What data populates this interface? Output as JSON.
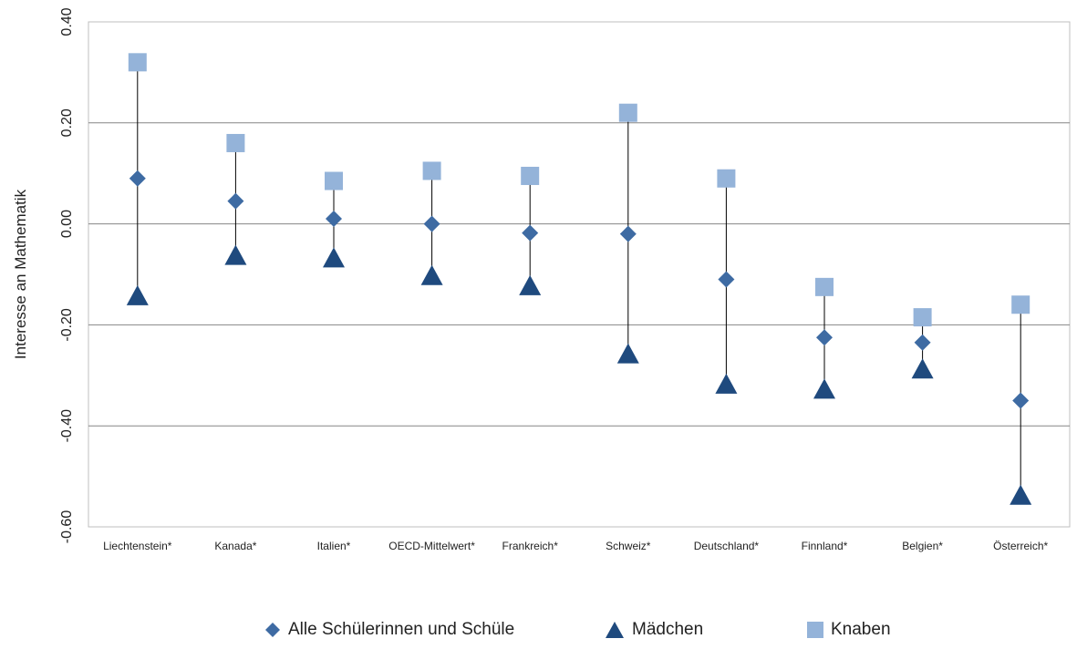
{
  "colors": {
    "alle": "#3e6ba3",
    "maedchen": "#1f4a7e",
    "knaben": "#94b3d9",
    "grid": "#868686",
    "frame": "#bfbfbf",
    "stem": "#000000"
  },
  "chart_data": {
    "type": "scatter",
    "title": "",
    "xlabel": "",
    "ylabel": "Interesse an Mathematik",
    "ylim": [
      -0.6,
      0.4
    ],
    "yticks": [
      "-0.60",
      "-0.40",
      "-0.20",
      "0.00",
      "0.20",
      "0.40"
    ],
    "grid": true,
    "legend_position": "bottom",
    "categories": [
      "Liechtenstein*",
      "Kanada*",
      "Italien*",
      "OECD-Mittelwert*",
      "Frankreich*",
      "Schweiz*",
      "Deutschland*",
      "Finnland*",
      "Belgien*",
      "Österreich*"
    ],
    "series": [
      {
        "name": "Alle Schülerinnen und Schüle",
        "marker": "diamond",
        "values": [
          0.09,
          0.045,
          0.01,
          0.0,
          -0.018,
          -0.02,
          -0.11,
          -0.225,
          -0.235,
          -0.35
        ]
      },
      {
        "name": "Mädchen",
        "marker": "triangle",
        "values": [
          -0.145,
          -0.065,
          -0.07,
          -0.105,
          -0.125,
          -0.26,
          -0.32,
          -0.33,
          -0.29,
          -0.54
        ]
      },
      {
        "name": "Knaben",
        "marker": "square",
        "values": [
          0.32,
          0.16,
          0.085,
          0.105,
          0.095,
          0.22,
          0.09,
          -0.125,
          -0.185,
          -0.16
        ]
      }
    ]
  }
}
